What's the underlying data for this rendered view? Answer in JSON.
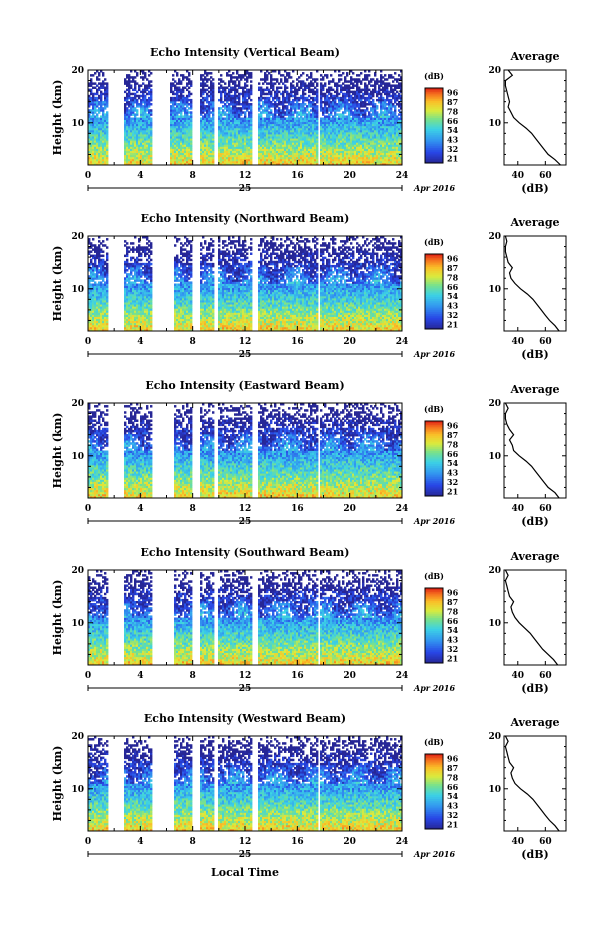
{
  "figure": {
    "xlabel": "Local Time",
    "date_day": "25",
    "date_label": "Apr 2016",
    "ylabel": "Height (km)",
    "colorbar_unit": "(dB)",
    "colorbar_ticks": [
      "96",
      "87",
      "78",
      "66",
      "54",
      "43",
      "32",
      "21"
    ],
    "average_title": "Average",
    "average_xlabel": "(dB)"
  },
  "chart_data": [
    {
      "type": "heatmap",
      "title": "Echo Intensity (Vertical Beam)",
      "xlabel": "",
      "ylabel": "Height (km)",
      "xlim": [
        0,
        24
      ],
      "ylim": [
        2,
        20
      ],
      "xticks": [
        0,
        4,
        8,
        12,
        16,
        20,
        24
      ],
      "yticks": [
        10,
        20
      ],
      "colorbar": {
        "label": "(dB)",
        "ticks": [
          96,
          87,
          78,
          66,
          54,
          43,
          32,
          21
        ]
      },
      "data_gaps_hours": [
        [
          1.6,
          2.7
        ],
        [
          4.9,
          6.2
        ],
        [
          8.0,
          8.6
        ],
        [
          9.6,
          10.0
        ],
        [
          12.5,
          13.0
        ],
        [
          17.6,
          17.8
        ]
      ],
      "average_profile": {
        "title": "Average",
        "xlabel": "(dB)",
        "xticks": [
          40,
          60
        ],
        "yticks": [
          10,
          20
        ],
        "xlim": [
          30,
          75
        ],
        "ylim": [
          2,
          20
        ],
        "height_km": [
          2,
          3,
          4,
          5,
          6,
          7,
          8,
          9,
          10,
          11,
          12,
          13,
          14,
          15,
          16,
          17,
          18,
          19,
          20
        ],
        "db": [
          71,
          67,
          62,
          59,
          56,
          53,
          50,
          46,
          41,
          37,
          35,
          33,
          34,
          33,
          32,
          31,
          31,
          36,
          33
        ]
      }
    },
    {
      "type": "heatmap",
      "title": "Echo Intensity (Northward Beam)",
      "xlabel": "",
      "ylabel": "Height (km)",
      "xlim": [
        0,
        24
      ],
      "ylim": [
        2,
        20
      ],
      "xticks": [
        0,
        4,
        8,
        12,
        16,
        20,
        24
      ],
      "yticks": [
        10,
        20
      ],
      "colorbar": {
        "label": "(dB)",
        "ticks": [
          96,
          87,
          78,
          66,
          54,
          43,
          32,
          21
        ]
      },
      "data_gaps_hours": [
        [
          1.6,
          2.7
        ],
        [
          4.9,
          6.6
        ],
        [
          8.0,
          8.6
        ],
        [
          9.6,
          10.0
        ],
        [
          12.5,
          13.0
        ],
        [
          17.6,
          17.8
        ]
      ],
      "average_profile": {
        "title": "Average",
        "xlabel": "(dB)",
        "xticks": [
          40,
          60
        ],
        "yticks": [
          10,
          20
        ],
        "xlim": [
          30,
          75
        ],
        "ylim": [
          2,
          20
        ],
        "height_km": [
          2,
          3,
          4,
          5,
          6,
          7,
          8,
          9,
          10,
          11,
          12,
          13,
          14,
          15,
          16,
          17,
          18,
          19,
          20
        ],
        "db": [
          70,
          67,
          63,
          60,
          57,
          54,
          51,
          47,
          42,
          38,
          35,
          34,
          36,
          33,
          32,
          31,
          31,
          32,
          31
        ]
      }
    },
    {
      "type": "heatmap",
      "title": "Echo Intensity (Eastward Beam)",
      "xlabel": "",
      "ylabel": "Height (km)",
      "xlim": [
        0,
        24
      ],
      "ylim": [
        2,
        20
      ],
      "xticks": [
        0,
        4,
        8,
        12,
        16,
        20,
        24
      ],
      "yticks": [
        10,
        20
      ],
      "colorbar": {
        "label": "(dB)",
        "ticks": [
          96,
          87,
          78,
          66,
          54,
          43,
          32,
          21
        ]
      },
      "data_gaps_hours": [
        [
          1.6,
          2.7
        ],
        [
          4.9,
          6.6
        ],
        [
          8.0,
          8.6
        ],
        [
          9.6,
          10.0
        ],
        [
          12.5,
          13.0
        ],
        [
          17.6,
          17.8
        ]
      ],
      "average_profile": {
        "title": "Average",
        "xlabel": "(dB)",
        "xticks": [
          40,
          60
        ],
        "yticks": [
          10,
          20
        ],
        "xlim": [
          30,
          75
        ],
        "ylim": [
          2,
          20
        ],
        "height_km": [
          2,
          3,
          4,
          5,
          6,
          7,
          8,
          9,
          10,
          11,
          12,
          13,
          14,
          15,
          16,
          17,
          18,
          19,
          20
        ],
        "db": [
          70,
          67,
          62,
          59,
          56,
          53,
          50,
          46,
          41,
          37,
          36,
          34,
          37,
          34,
          32,
          31,
          31,
          33,
          31
        ]
      }
    },
    {
      "type": "heatmap",
      "title": "Echo Intensity (Southward Beam)",
      "xlabel": "",
      "ylabel": "Height (km)",
      "xlim": [
        0,
        24
      ],
      "ylim": [
        2,
        20
      ],
      "xticks": [
        0,
        4,
        8,
        12,
        16,
        20,
        24
      ],
      "yticks": [
        10,
        20
      ],
      "colorbar": {
        "label": "(dB)",
        "ticks": [
          96,
          87,
          78,
          66,
          54,
          43,
          32,
          21
        ]
      },
      "data_gaps_hours": [
        [
          1.6,
          2.7
        ],
        [
          4.9,
          6.6
        ],
        [
          8.0,
          8.6
        ],
        [
          9.6,
          10.0
        ],
        [
          12.5,
          13.0
        ],
        [
          17.6,
          17.8
        ]
      ],
      "average_profile": {
        "title": "Average",
        "xlabel": "(dB)",
        "xticks": [
          40,
          60
        ],
        "yticks": [
          10,
          20
        ],
        "xlim": [
          30,
          75
        ],
        "ylim": [
          2,
          20
        ],
        "height_km": [
          2,
          3,
          4,
          5,
          6,
          7,
          8,
          9,
          10,
          11,
          12,
          13,
          14,
          15,
          16,
          17,
          18,
          19,
          20
        ],
        "db": [
          69,
          66,
          62,
          58,
          55,
          52,
          49,
          45,
          41,
          38,
          36,
          35,
          37,
          34,
          33,
          32,
          31,
          33,
          31
        ]
      }
    },
    {
      "type": "heatmap",
      "title": "Echo Intensity (Westward Beam)",
      "xlabel": "Local Time",
      "ylabel": "Height (km)",
      "xlim": [
        0,
        24
      ],
      "ylim": [
        2,
        20
      ],
      "xticks": [
        0,
        4,
        8,
        12,
        16,
        20,
        24
      ],
      "yticks": [
        10,
        20
      ],
      "colorbar": {
        "label": "(dB)",
        "ticks": [
          96,
          87,
          78,
          66,
          54,
          43,
          32,
          21
        ]
      },
      "data_gaps_hours": [
        [
          1.6,
          2.7
        ],
        [
          4.9,
          6.6
        ],
        [
          8.0,
          8.6
        ],
        [
          9.6,
          10.0
        ],
        [
          12.5,
          13.0
        ],
        [
          17.6,
          17.8
        ]
      ],
      "average_profile": {
        "title": "Average",
        "xlabel": "(dB)",
        "xticks": [
          40,
          60
        ],
        "yticks": [
          10,
          20
        ],
        "xlim": [
          30,
          75
        ],
        "ylim": [
          2,
          20
        ],
        "height_km": [
          2,
          3,
          4,
          5,
          6,
          7,
          8,
          9,
          10,
          11,
          12,
          13,
          14,
          15,
          16,
          17,
          18,
          19,
          20
        ],
        "db": [
          70,
          67,
          63,
          60,
          57,
          54,
          51,
          47,
          42,
          38,
          36,
          35,
          37,
          34,
          33,
          32,
          31,
          33,
          31
        ]
      }
    }
  ]
}
